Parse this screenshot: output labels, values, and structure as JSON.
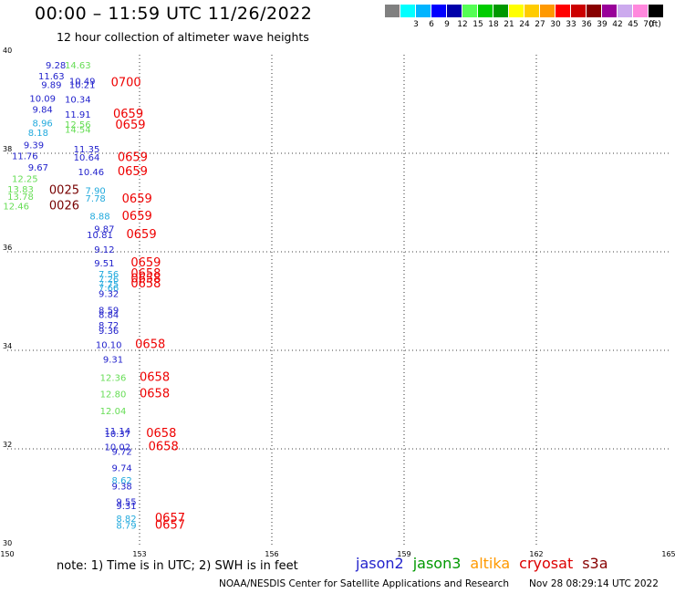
{
  "title": "00:00 – 11:59 UTC 11/26/2022",
  "subtitle": "12 hour collection of altimeter wave heights",
  "colorbar": {
    "unit": "(ft)",
    "bins": [
      {
        "label": "",
        "color": "#808080"
      },
      {
        "label": "3",
        "color": "#00ffff"
      },
      {
        "label": "6",
        "color": "#00b4ff"
      },
      {
        "label": "9",
        "color": "#0000ff"
      },
      {
        "label": "12",
        "color": "#0000aa"
      },
      {
        "label": "15",
        "color": "#55ff55"
      },
      {
        "label": "18",
        "color": "#00cc00"
      },
      {
        "label": "21",
        "color": "#009900"
      },
      {
        "label": "24",
        "color": "#ffff00"
      },
      {
        "label": "27",
        "color": "#ffcc00"
      },
      {
        "label": "30",
        "color": "#ff9900"
      },
      {
        "label": "33",
        "color": "#ff0000"
      },
      {
        "label": "36",
        "color": "#cc0000"
      },
      {
        "label": "39",
        "color": "#880000"
      },
      {
        "label": "42",
        "color": "#990099"
      },
      {
        "label": "45",
        "color": "#ccaaee"
      },
      {
        "label": "70",
        "color": "#ff88dd"
      },
      {
        "label": "",
        "color": "#000000"
      }
    ]
  },
  "axes": {
    "x_ticks": [
      "150",
      "153",
      "156",
      "159",
      "162",
      "165"
    ],
    "y_ticks": [
      "40",
      "38",
      "36",
      "34",
      "32",
      "30"
    ],
    "lon_range": [
      150,
      165
    ],
    "lat_range": [
      30,
      40
    ]
  },
  "heights": [
    {
      "lon": 151.1,
      "lat": 39.72,
      "text": "9.28",
      "color": "#2222cc"
    },
    {
      "lon": 151.6,
      "lat": 39.72,
      "text": "14.63",
      "color": "#66dd55"
    },
    {
      "lon": 151.0,
      "lat": 39.5,
      "text": "11.63",
      "color": "#2222cc"
    },
    {
      "lon": 151.7,
      "lat": 39.4,
      "text": "10.49",
      "color": "#2222cc"
    },
    {
      "lon": 151.0,
      "lat": 39.32,
      "text": "9.89",
      "color": "#2222cc"
    },
    {
      "lon": 151.7,
      "lat": 39.32,
      "text": "10.21",
      "color": "#2222cc"
    },
    {
      "lon": 150.8,
      "lat": 39.05,
      "text": "10.09",
      "color": "#2222cc"
    },
    {
      "lon": 151.6,
      "lat": 39.03,
      "text": "10.34",
      "color": "#2222cc"
    },
    {
      "lon": 150.8,
      "lat": 38.82,
      "text": "9.84",
      "color": "#2222cc"
    },
    {
      "lon": 151.6,
      "lat": 38.72,
      "text": "11.91",
      "color": "#2222cc"
    },
    {
      "lon": 150.8,
      "lat": 38.55,
      "text": "8.96",
      "color": "#22aadd"
    },
    {
      "lon": 151.6,
      "lat": 38.52,
      "text": "12.56",
      "color": "#66dd55"
    },
    {
      "lon": 150.7,
      "lat": 38.35,
      "text": "8.18",
      "color": "#22aadd"
    },
    {
      "lon": 151.6,
      "lat": 38.42,
      "text": "14.54",
      "color": "#66dd55"
    },
    {
      "lon": 150.6,
      "lat": 38.1,
      "text": "9.39",
      "color": "#2222cc"
    },
    {
      "lon": 151.8,
      "lat": 38.02,
      "text": "11.35",
      "color": "#2222cc"
    },
    {
      "lon": 150.4,
      "lat": 37.88,
      "text": "11.76",
      "color": "#2222cc"
    },
    {
      "lon": 151.8,
      "lat": 37.85,
      "text": "10.64",
      "color": "#2222cc"
    },
    {
      "lon": 150.7,
      "lat": 37.65,
      "text": "9.67",
      "color": "#2222cc"
    },
    {
      "lon": 151.9,
      "lat": 37.56,
      "text": "10.46",
      "color": "#2222cc"
    },
    {
      "lon": 150.4,
      "lat": 37.42,
      "text": "12.25",
      "color": "#66dd55"
    },
    {
      "lon": 150.3,
      "lat": 37.2,
      "text": "13.83",
      "color": "#66dd55"
    },
    {
      "lon": 152.0,
      "lat": 37.18,
      "text": "7.90",
      "color": "#22aadd"
    },
    {
      "lon": 150.3,
      "lat": 37.06,
      "text": "13.78",
      "color": "#66dd55"
    },
    {
      "lon": 152.0,
      "lat": 37.02,
      "text": "7.78",
      "color": "#22aadd"
    },
    {
      "lon": 150.2,
      "lat": 36.86,
      "text": "12.46",
      "color": "#66dd55"
    },
    {
      "lon": 152.1,
      "lat": 36.66,
      "text": "8.88",
      "color": "#22aadd"
    },
    {
      "lon": 152.2,
      "lat": 36.4,
      "text": "9.87",
      "color": "#2222cc"
    },
    {
      "lon": 152.1,
      "lat": 36.28,
      "text": "10.81",
      "color": "#2222cc"
    },
    {
      "lon": 152.2,
      "lat": 35.98,
      "text": "9.12",
      "color": "#2222cc"
    },
    {
      "lon": 152.2,
      "lat": 35.7,
      "text": "9.51",
      "color": "#2222cc"
    },
    {
      "lon": 152.3,
      "lat": 35.48,
      "text": "7.56",
      "color": "#22aadd"
    },
    {
      "lon": 152.3,
      "lat": 35.38,
      "text": "7.26",
      "color": "#22aadd"
    },
    {
      "lon": 152.3,
      "lat": 35.28,
      "text": "7.75",
      "color": "#22aadd"
    },
    {
      "lon": 152.3,
      "lat": 35.2,
      "text": "7.66",
      "color": "#22aadd"
    },
    {
      "lon": 152.3,
      "lat": 35.08,
      "text": "9.32",
      "color": "#2222cc"
    },
    {
      "lon": 152.3,
      "lat": 34.75,
      "text": "8.59",
      "color": "#2222cc"
    },
    {
      "lon": 152.3,
      "lat": 34.66,
      "text": "8.84",
      "color": "#2222cc"
    },
    {
      "lon": 152.3,
      "lat": 34.44,
      "text": "8.72",
      "color": "#2222cc"
    },
    {
      "lon": 152.3,
      "lat": 34.33,
      "text": "9.36",
      "color": "#2222cc"
    },
    {
      "lon": 152.3,
      "lat": 34.05,
      "text": "10.10",
      "color": "#2222cc"
    },
    {
      "lon": 152.4,
      "lat": 33.75,
      "text": "9.31",
      "color": "#2222cc"
    },
    {
      "lon": 152.4,
      "lat": 33.38,
      "text": "12.36",
      "color": "#66dd55"
    },
    {
      "lon": 152.4,
      "lat": 33.05,
      "text": "12.80",
      "color": "#66dd55"
    },
    {
      "lon": 152.4,
      "lat": 32.7,
      "text": "12.04",
      "color": "#66dd55"
    },
    {
      "lon": 152.5,
      "lat": 32.3,
      "text": "11.14",
      "color": "#2222cc"
    },
    {
      "lon": 152.5,
      "lat": 32.24,
      "text": "10.37",
      "color": "#2222cc"
    },
    {
      "lon": 152.5,
      "lat": 31.97,
      "text": "10.02",
      "color": "#2222cc"
    },
    {
      "lon": 152.6,
      "lat": 31.88,
      "text": "9.72",
      "color": "#2222cc"
    },
    {
      "lon": 152.6,
      "lat": 31.55,
      "text": "9.74",
      "color": "#2222cc"
    },
    {
      "lon": 152.6,
      "lat": 31.3,
      "text": "8.62",
      "color": "#22aadd"
    },
    {
      "lon": 152.6,
      "lat": 31.18,
      "text": "9.38",
      "color": "#2222cc"
    },
    {
      "lon": 152.7,
      "lat": 30.86,
      "text": "9.55",
      "color": "#2222cc"
    },
    {
      "lon": 152.7,
      "lat": 30.78,
      "text": "9.31",
      "color": "#2222cc"
    },
    {
      "lon": 152.7,
      "lat": 30.52,
      "text": "8.82",
      "color": "#22aadd"
    },
    {
      "lon": 152.7,
      "lat": 30.38,
      "text": "8.79",
      "color": "#22aadd"
    }
  ],
  "times": [
    {
      "lon": 152.35,
      "lat": 39.36,
      "text": "0700",
      "color": "#ee0000"
    },
    {
      "lon": 152.4,
      "lat": 38.72,
      "text": "0659",
      "color": "#ee0000"
    },
    {
      "lon": 152.45,
      "lat": 38.5,
      "text": "0659",
      "color": "#ee0000"
    },
    {
      "lon": 152.5,
      "lat": 37.84,
      "text": "0659",
      "color": "#ee0000"
    },
    {
      "lon": 152.5,
      "lat": 37.56,
      "text": "0659",
      "color": "#ee0000"
    },
    {
      "lon": 150.95,
      "lat": 37.18,
      "text": "0025",
      "color": "#770000"
    },
    {
      "lon": 152.6,
      "lat": 37.0,
      "text": "0659",
      "color": "#ee0000"
    },
    {
      "lon": 150.95,
      "lat": 36.86,
      "text": "0026",
      "color": "#770000"
    },
    {
      "lon": 152.6,
      "lat": 36.65,
      "text": "0659",
      "color": "#ee0000"
    },
    {
      "lon": 152.7,
      "lat": 36.28,
      "text": "0659",
      "color": "#ee0000"
    },
    {
      "lon": 152.8,
      "lat": 35.7,
      "text": "0659",
      "color": "#ee0000"
    },
    {
      "lon": 152.8,
      "lat": 35.48,
      "text": "0658",
      "color": "#ee0000"
    },
    {
      "lon": 152.8,
      "lat": 35.38,
      "text": "0658",
      "color": "#ee0000"
    },
    {
      "lon": 152.8,
      "lat": 35.28,
      "text": "0658",
      "color": "#ee0000"
    },
    {
      "lon": 152.9,
      "lat": 34.05,
      "text": "0658",
      "color": "#ee0000"
    },
    {
      "lon": 153.0,
      "lat": 33.38,
      "text": "0658",
      "color": "#ee0000"
    },
    {
      "lon": 153.0,
      "lat": 33.05,
      "text": "0658",
      "color": "#ee0000"
    },
    {
      "lon": 153.15,
      "lat": 32.24,
      "text": "0658",
      "color": "#ee0000"
    },
    {
      "lon": 153.2,
      "lat": 31.97,
      "text": "0658",
      "color": "#ee0000"
    },
    {
      "lon": 153.35,
      "lat": 30.52,
      "text": "0657",
      "color": "#ee0000"
    },
    {
      "lon": 153.35,
      "lat": 30.38,
      "text": "0657",
      "color": "#ee0000"
    }
  ],
  "note": "note:  1) Time is in UTC; 2) SWH is in feet",
  "legend": [
    {
      "name": "jason2",
      "color": "#2222cc"
    },
    {
      "name": "jason3",
      "color": "#009900"
    },
    {
      "name": "altika",
      "color": "#ff9900"
    },
    {
      "name": "cryosat",
      "color": "#dd0000"
    },
    {
      "name": "s3a",
      "color": "#880000"
    }
  ],
  "credit": "NOAA/NESDIS Center for Satellite Applications and Research",
  "timestamp": "Nov 28 08:29:14 UTC 2022"
}
